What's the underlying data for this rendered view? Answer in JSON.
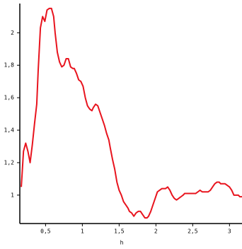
{
  "chart_data": {
    "type": "line",
    "x_label": "h",
    "x": [
      0.17,
      0.2,
      0.23,
      0.26,
      0.29,
      0.32,
      0.35,
      0.38,
      0.4,
      0.43,
      0.46,
      0.49,
      0.52,
      0.55,
      0.58,
      0.61,
      0.63,
      0.66,
      0.69,
      0.72,
      0.75,
      0.78,
      0.81,
      0.84,
      0.87,
      0.89,
      0.92,
      0.95,
      0.98,
      1.01,
      1.04,
      1.07,
      1.1,
      1.13,
      1.15,
      1.18,
      1.21,
      1.24,
      1.27,
      1.3,
      1.33,
      1.36,
      1.38,
      1.41,
      1.44,
      1.47,
      1.5,
      1.53,
      1.56,
      1.59,
      1.62,
      1.64,
      1.67,
      1.7,
      1.73,
      1.76,
      1.79,
      1.82,
      1.85,
      1.88,
      1.9,
      1.93,
      1.96,
      1.99,
      2.02,
      2.05,
      2.08,
      2.11,
      2.13,
      2.16,
      2.19,
      2.22,
      2.25,
      2.28,
      2.31,
      2.34,
      2.37,
      2.39,
      2.42,
      2.45,
      2.48,
      2.51,
      2.54,
      2.57,
      2.6,
      2.63,
      2.65,
      2.68,
      2.71,
      2.74,
      2.77,
      2.8,
      2.83,
      2.86,
      2.88,
      2.91,
      2.94,
      2.97,
      3.0,
      3.03,
      3.06,
      3.09,
      3.12,
      3.14,
      3.17
    ],
    "series": [
      {
        "color": "#e8141e",
        "values": [
          1.05,
          1.27,
          1.32,
          1.27,
          1.2,
          1.31,
          1.44,
          1.56,
          1.77,
          2.03,
          2.1,
          2.07,
          2.14,
          2.15,
          2.15,
          2.1,
          2.0,
          1.88,
          1.82,
          1.79,
          1.8,
          1.84,
          1.84,
          1.79,
          1.78,
          1.78,
          1.75,
          1.71,
          1.7,
          1.67,
          1.6,
          1.55,
          1.53,
          1.52,
          1.54,
          1.56,
          1.55,
          1.51,
          1.47,
          1.43,
          1.38,
          1.34,
          1.29,
          1.22,
          1.16,
          1.08,
          1.03,
          1.0,
          0.96,
          0.94,
          0.92,
          0.9,
          0.89,
          0.87,
          0.89,
          0.9,
          0.9,
          0.88,
          0.86,
          0.86,
          0.87,
          0.9,
          0.94,
          0.98,
          1.02,
          1.03,
          1.04,
          1.04,
          1.04,
          1.05,
          1.03,
          1.0,
          0.98,
          0.97,
          0.98,
          0.99,
          1.0,
          1.01,
          1.01,
          1.01,
          1.01,
          1.01,
          1.01,
          1.02,
          1.03,
          1.02,
          1.02,
          1.02,
          1.02,
          1.03,
          1.05,
          1.07,
          1.08,
          1.08,
          1.07,
          1.07,
          1.07,
          1.06,
          1.05,
          1.03,
          1.0,
          1.0,
          1.0,
          0.99,
          0.99
        ]
      }
    ],
    "xlim": [
      0.15,
      3.17
    ],
    "ylim": [
      0.825,
      2.18
    ],
    "xticks": [
      {
        "value": 0.5,
        "label": "0,5"
      },
      1,
      {
        "value": 1.5,
        "label": "1,5"
      },
      2,
      {
        "value": 2.5,
        "label": "2,5"
      },
      3
    ],
    "yticks": [
      1,
      {
        "value": 1.2,
        "label": "1,2"
      },
      {
        "value": 1.4,
        "label": "1,4"
      },
      {
        "value": 1.6,
        "label": "1,6"
      },
      {
        "value": 1.8,
        "label": "1,8"
      },
      2
    ]
  }
}
